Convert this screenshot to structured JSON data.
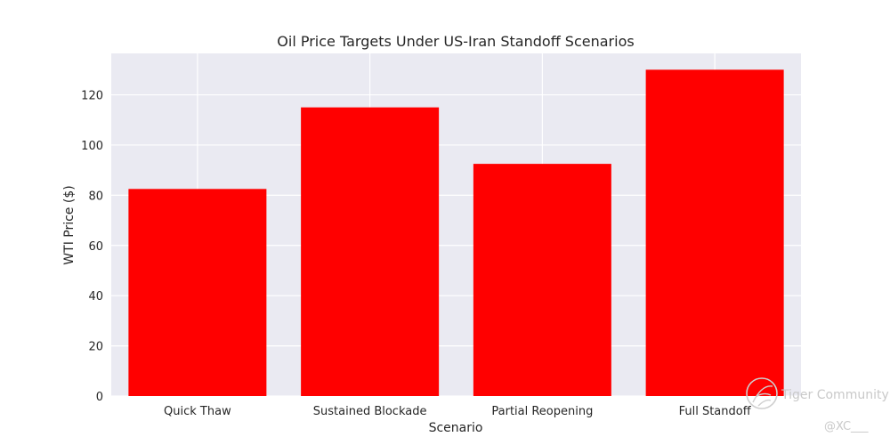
{
  "chart_data": {
    "type": "bar",
    "title": "Oil Price Targets Under US-Iran Standoff Scenarios",
    "xlabel": "Scenario",
    "ylabel": "WTI Price ($)",
    "categories": [
      "Quick Thaw",
      "Sustained Blockade",
      "Partial Reopening",
      "Full Standoff"
    ],
    "values": [
      82.5,
      115,
      92.5,
      130
    ],
    "ylim": [
      0,
      136.5
    ],
    "yticks": [
      0,
      20,
      40,
      60,
      80,
      100,
      120
    ],
    "bar_color": "#ff0000",
    "background_color": "#eaeaf2",
    "grid": true
  },
  "watermark": {
    "brand": "Tiger Community",
    "handle": "@XC___"
  }
}
